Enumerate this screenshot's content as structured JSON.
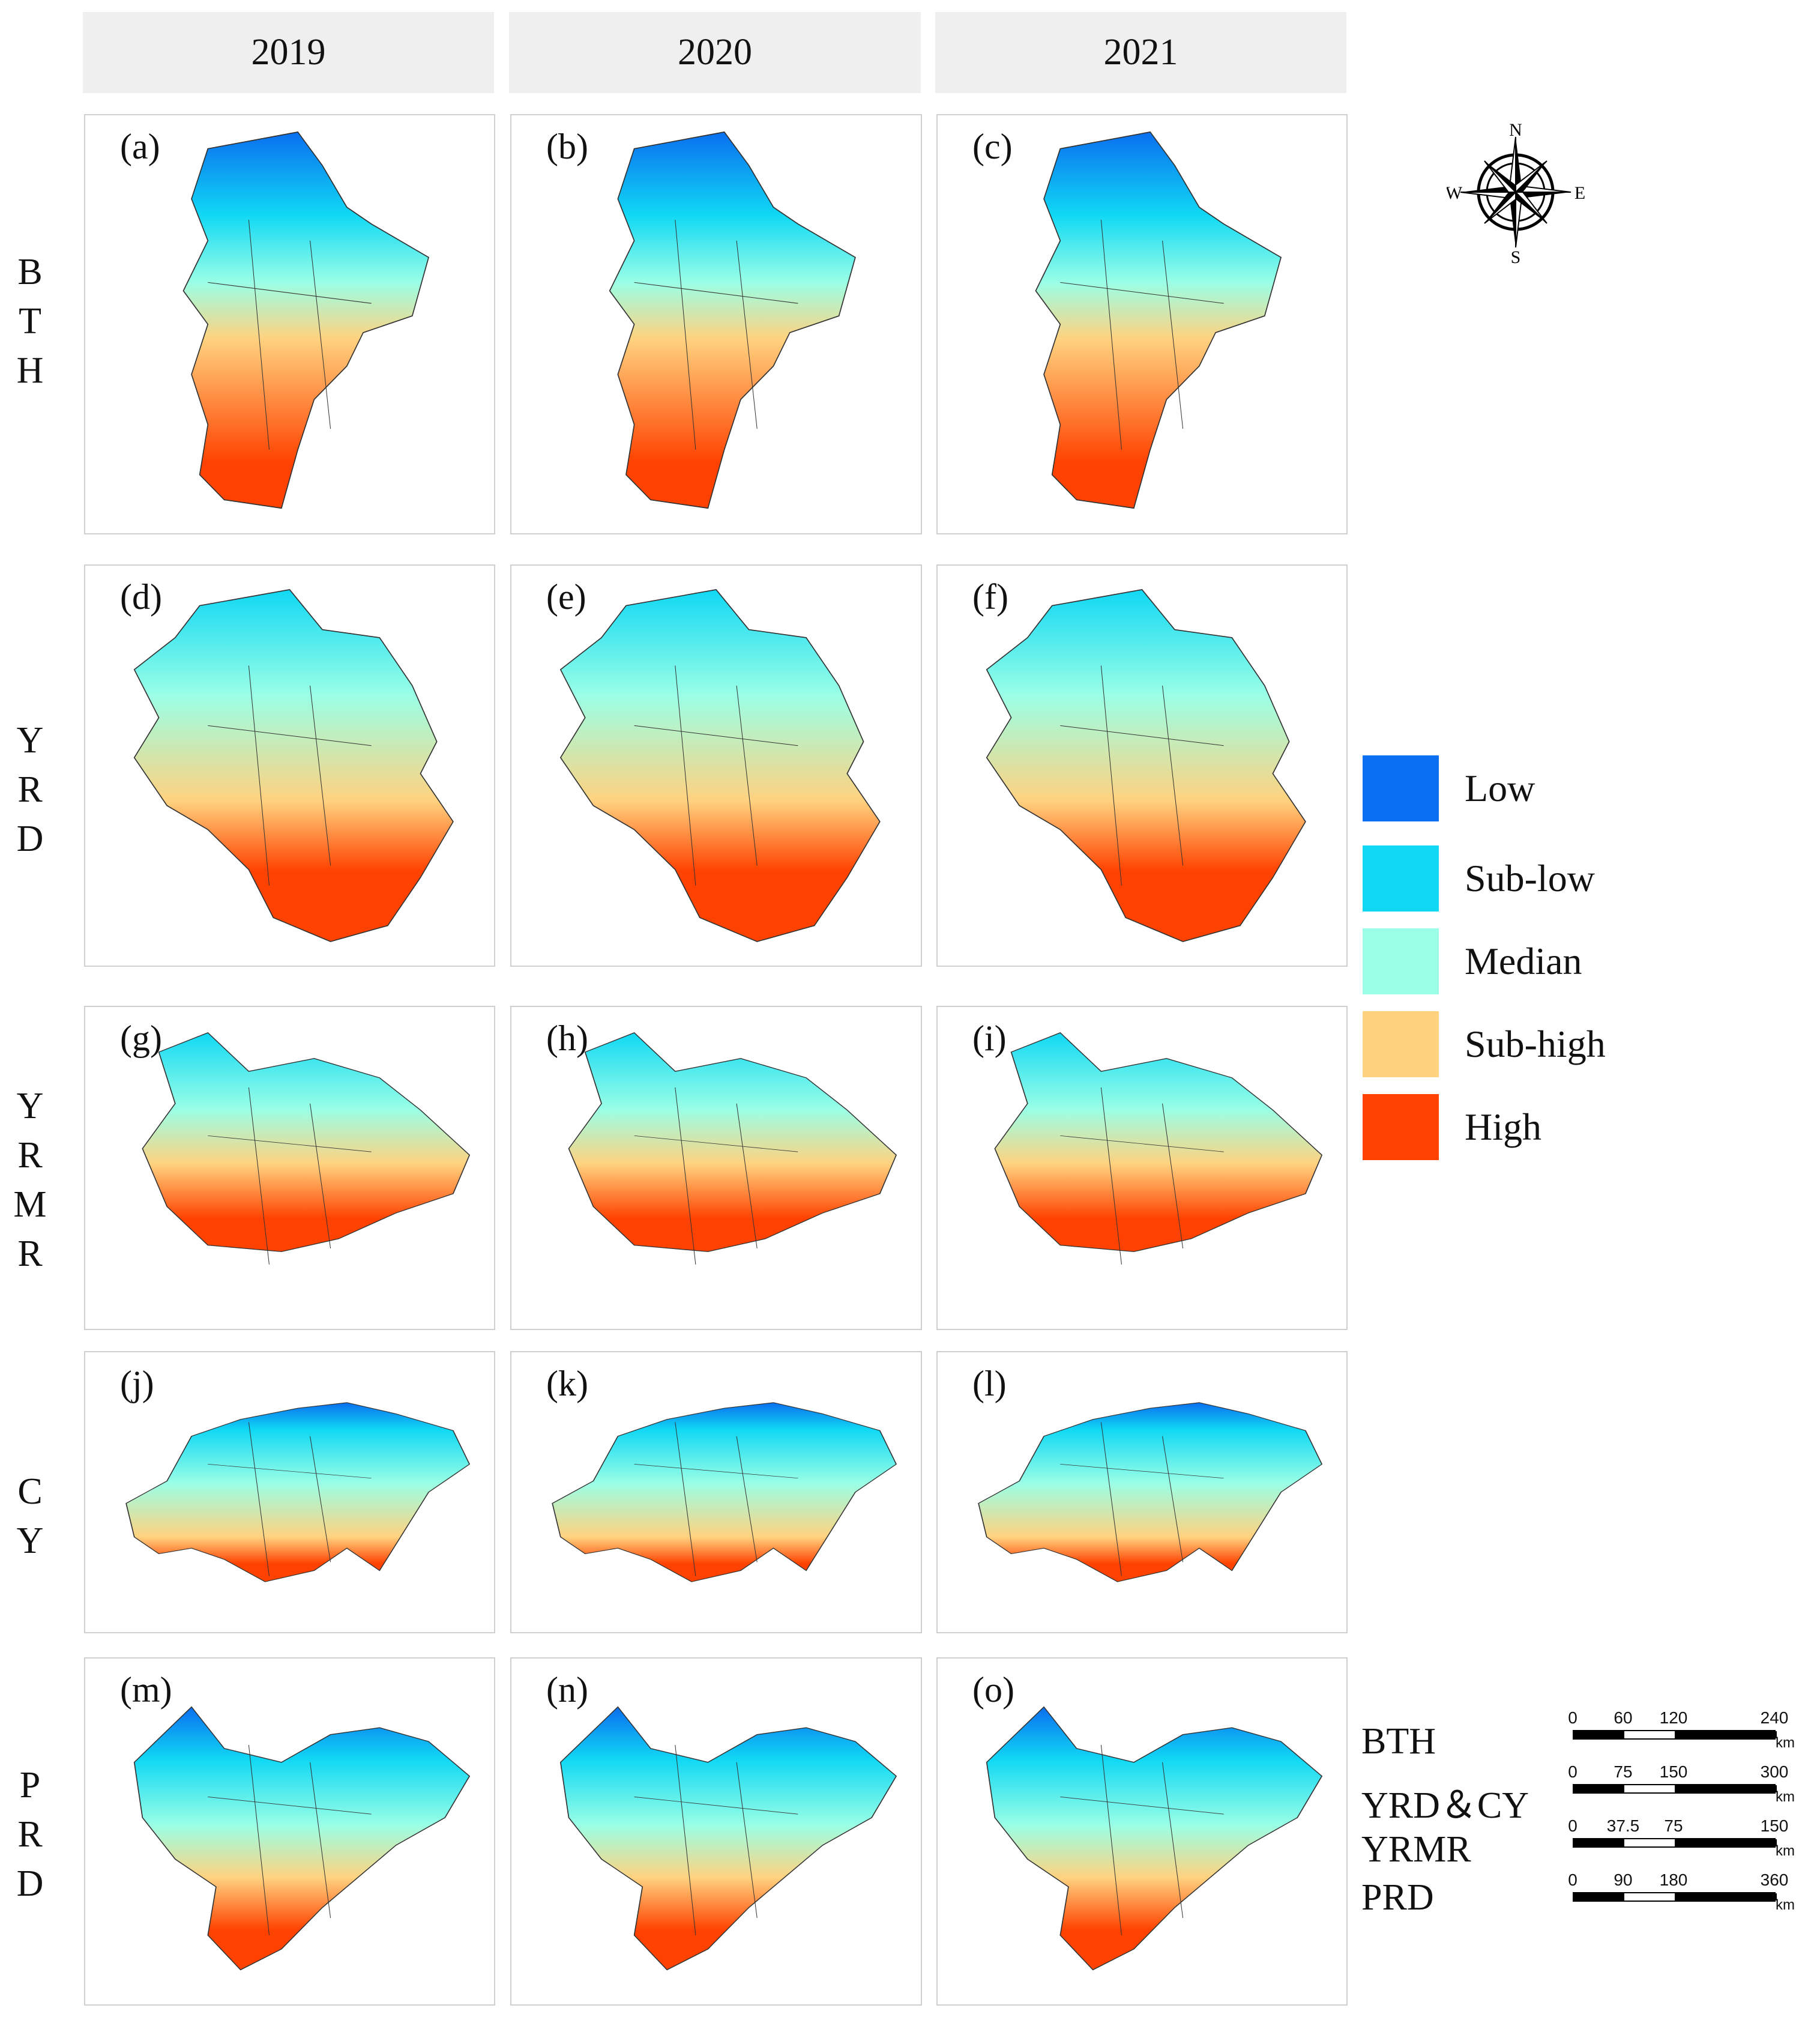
{
  "years": [
    "2019",
    "2020",
    "2021"
  ],
  "regions": [
    {
      "key": "BTH",
      "letters": [
        "B",
        "T",
        "H"
      ],
      "panels": [
        "(a)",
        "(b)",
        "(c)"
      ]
    },
    {
      "key": "YRD",
      "letters": [
        "Y",
        "R",
        "D"
      ],
      "panels": [
        "(d)",
        "(e)",
        "(f)"
      ]
    },
    {
      "key": "YRMR",
      "letters": [
        "Y",
        "R",
        "M",
        "R"
      ],
      "panels": [
        "(g)",
        "(h)",
        "(i)"
      ]
    },
    {
      "key": "CY",
      "letters": [
        "C",
        "Y"
      ],
      "panels": [
        "(j)",
        "(k)",
        "(l)"
      ]
    },
    {
      "key": "PRD",
      "letters": [
        "P",
        "R",
        "D"
      ],
      "panels": [
        "(m)",
        "(n)",
        "(o)"
      ]
    }
  ],
  "legend": [
    {
      "label": "Low",
      "color": "#0a6ff0"
    },
    {
      "label": "Sub-low",
      "color": "#10d8f4"
    },
    {
      "label": "Median",
      "color": "#9affe6"
    },
    {
      "label": "Sub-high",
      "color": "#ffd27f"
    },
    {
      "label": "High",
      "color": "#ff4200"
    }
  ],
  "compass": {
    "n": "N",
    "s": "S",
    "e": "E",
    "w": "W",
    "icon": "compass-rose-icon"
  },
  "scales": [
    {
      "name": "BTH",
      "ticks": [
        "0",
        "60",
        "120",
        "240"
      ],
      "unit": "km"
    },
    {
      "name": "YRD＆CY",
      "ticks": [
        "0",
        "75",
        "150",
        "300"
      ],
      "unit": "km"
    },
    {
      "name": "YRMR",
      "ticks": [
        "0",
        "37.5",
        "75",
        "150"
      ],
      "unit": "km"
    },
    {
      "name": "PRD",
      "ticks": [
        "0",
        "90",
        "180",
        "360"
      ],
      "unit": "km"
    }
  ]
}
